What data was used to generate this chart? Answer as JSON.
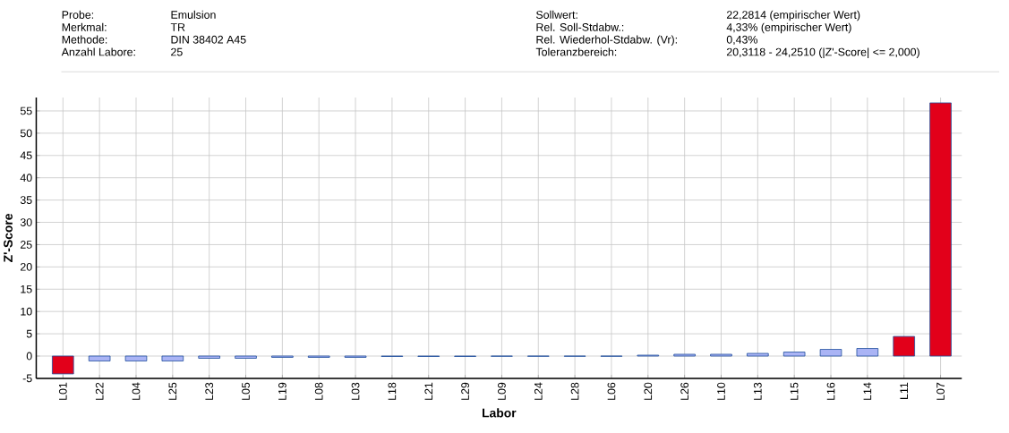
{
  "chart_data": {
    "type": "bar",
    "annotations": [
      "Probe:",
      "Emulsion",
      "Merkmal:",
      "TR",
      "Methode:",
      "DIN 38402 A45",
      "Anzahl Labore:",
      "25",
      "Sollwert:",
      "22,2814  (empirischer Wert)",
      "Rel. Soll-Stdabw.:",
      "4,33% (empirischer Wert)",
      "Rel. Wiederhol-Stdabw. (Vr):",
      "0,43%",
      "Toleranzbereich:",
      "20,3118 - 24,2510  (|Z'-Score| <= 2,000)"
    ],
    "xlabel": "Labor",
    "ylabel": "Z'-Score",
    "categories": [
      "L01",
      "L22",
      "L04",
      "L25",
      "L23",
      "L05",
      "L19",
      "L08",
      "L03",
      "L18",
      "L21",
      "L29",
      "L09",
      "L24",
      "L28",
      "L06",
      "L20",
      "L26",
      "L10",
      "L13",
      "L15",
      "L16",
      "L14",
      "L11",
      "L07"
    ],
    "values": [
      -4.0,
      -1.1,
      -1.1,
      -1.1,
      -0.5,
      -0.5,
      -0.3,
      -0.3,
      -0.3,
      -0.1,
      -0.1,
      -0.1,
      -0.05,
      -0.05,
      -0.05,
      -0.05,
      0.2,
      0.4,
      0.4,
      0.6,
      0.9,
      1.5,
      1.7,
      4.4,
      56.8
    ],
    "colors": [
      "#e2001a",
      "#aab4f5",
      "#aab4f5",
      "#aab4f5",
      "#aab4f5",
      "#aab4f5",
      "#aab4f5",
      "#aab4f5",
      "#aab4f5",
      "#aab4f5",
      "#aab4f5",
      "#aab4f5",
      "#aab4f5",
      "#aab4f5",
      "#aab4f5",
      "#aab4f5",
      "#aab4f5",
      "#aab4f5",
      "#aab4f5",
      "#aab4f5",
      "#aab4f5",
      "#aab4f5",
      "#aab4f5",
      "#e2001a",
      "#e2001a"
    ],
    "ylim": [
      -5,
      58
    ],
    "yticks": [
      -5,
      0,
      5,
      10,
      15,
      20,
      25,
      30,
      35,
      40,
      45,
      50,
      55
    ],
    "grid": true
  }
}
